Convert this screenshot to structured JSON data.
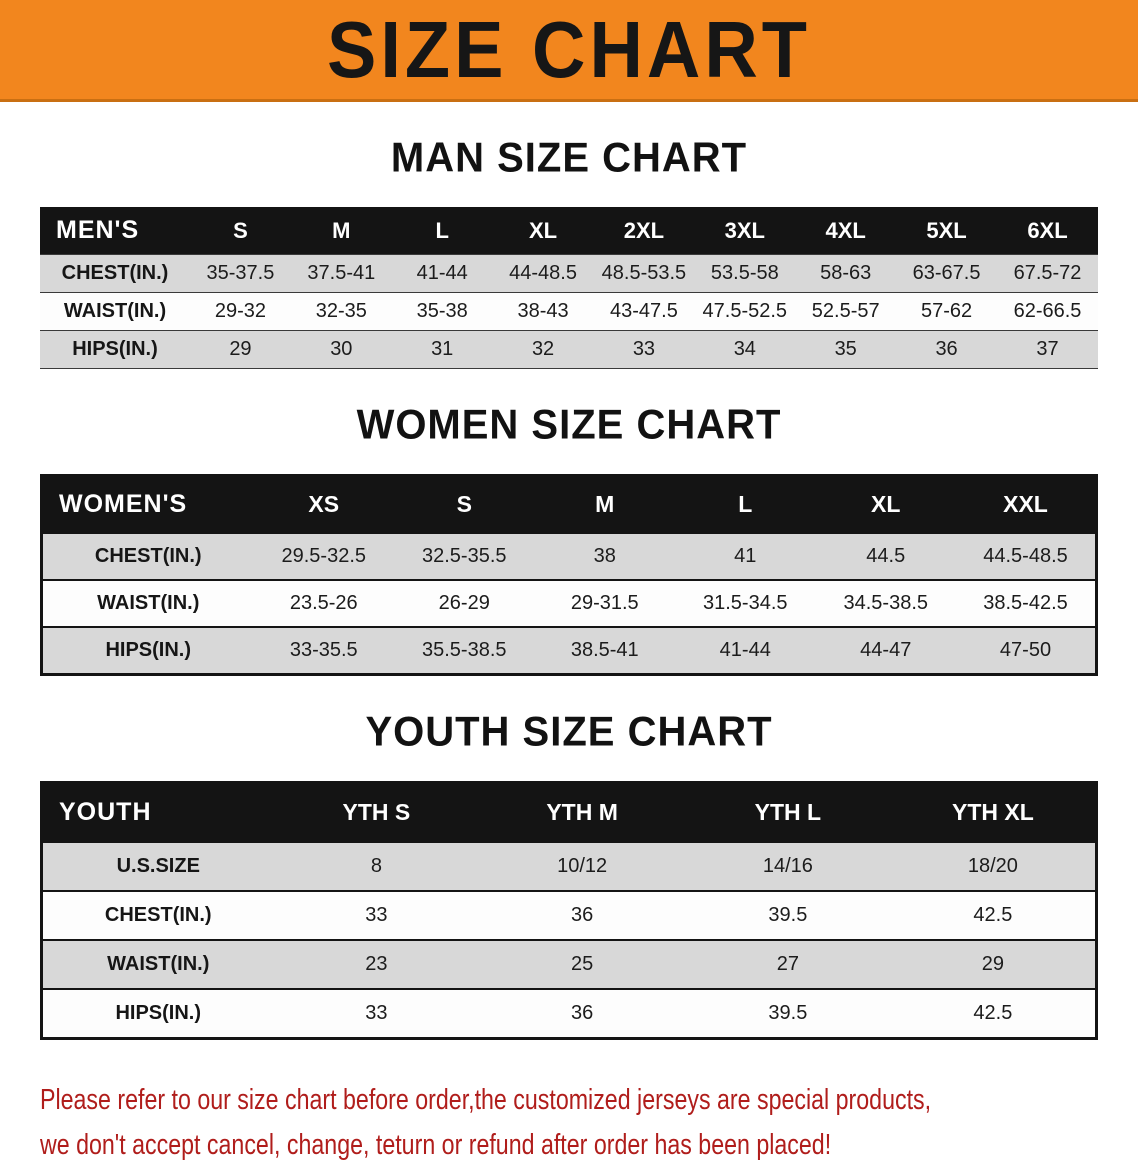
{
  "banner": {
    "title": "SIZE CHART"
  },
  "colors": {
    "banner_bg": "#F2861E",
    "header_bg": "#141414",
    "row_alt": "#D8D8D8",
    "note_red": "#B01D1B"
  },
  "sections": {
    "men": {
      "heading": "MAN SIZE CHART",
      "table": {
        "header": [
          "MEN'S",
          "S",
          "M",
          "L",
          "XL",
          "2XL",
          "3XL",
          "4XL",
          "5XL",
          "6XL"
        ],
        "rows": [
          {
            "label": "CHEST(IN.)",
            "values": [
              "35-37.5",
              "37.5-41",
              "41-44",
              "44-48.5",
              "48.5-53.5",
              "53.5-58",
              "58-63",
              "63-67.5",
              "67.5-72"
            ]
          },
          {
            "label": "WAIST(IN.)",
            "values": [
              "29-32",
              "32-35",
              "35-38",
              "38-43",
              "43-47.5",
              "47.5-52.5",
              "52.5-57",
              "57-62",
              "62-66.5"
            ]
          },
          {
            "label": "HIPS(IN.)",
            "values": [
              "29",
              "30",
              "31",
              "32",
              "33",
              "34",
              "35",
              "36",
              "37"
            ]
          }
        ]
      }
    },
    "women": {
      "heading": "WOMEN SIZE CHART",
      "table": {
        "header": [
          "WOMEN'S",
          "XS",
          "S",
          "M",
          "L",
          "XL",
          "XXL"
        ],
        "rows": [
          {
            "label": "CHEST(IN.)",
            "values": [
              "29.5-32.5",
              "32.5-35.5",
              "38",
              "41",
              "44.5",
              "44.5-48.5"
            ]
          },
          {
            "label": "WAIST(IN.)",
            "values": [
              "23.5-26",
              "26-29",
              "29-31.5",
              "31.5-34.5",
              "34.5-38.5",
              "38.5-42.5"
            ]
          },
          {
            "label": "HIPS(IN.)",
            "values": [
              "33-35.5",
              "35.5-38.5",
              "38.5-41",
              "41-44",
              "44-47",
              "47-50"
            ]
          }
        ]
      }
    },
    "youth": {
      "heading": "YOUTH SIZE CHART",
      "table": {
        "header": [
          "YOUTH",
          "YTH S",
          "YTH M",
          "YTH L",
          "YTH XL"
        ],
        "rows": [
          {
            "label": "U.S.SIZE",
            "values": [
              "8",
              "10/12",
              "14/16",
              "18/20"
            ]
          },
          {
            "label": "CHEST(IN.)",
            "values": [
              "33",
              "36",
              "39.5",
              "42.5"
            ]
          },
          {
            "label": "WAIST(IN.)",
            "values": [
              "23",
              "25",
              "27",
              "29"
            ]
          },
          {
            "label": "HIPS(IN.)",
            "values": [
              "33",
              "36",
              "39.5",
              "42.5"
            ]
          }
        ]
      }
    }
  },
  "note": {
    "line1": "Please refer to our size chart before order,the customized jerseys are special products,",
    "line2": "we don't accept cancel, change, teturn or refund after order has been placed!"
  }
}
